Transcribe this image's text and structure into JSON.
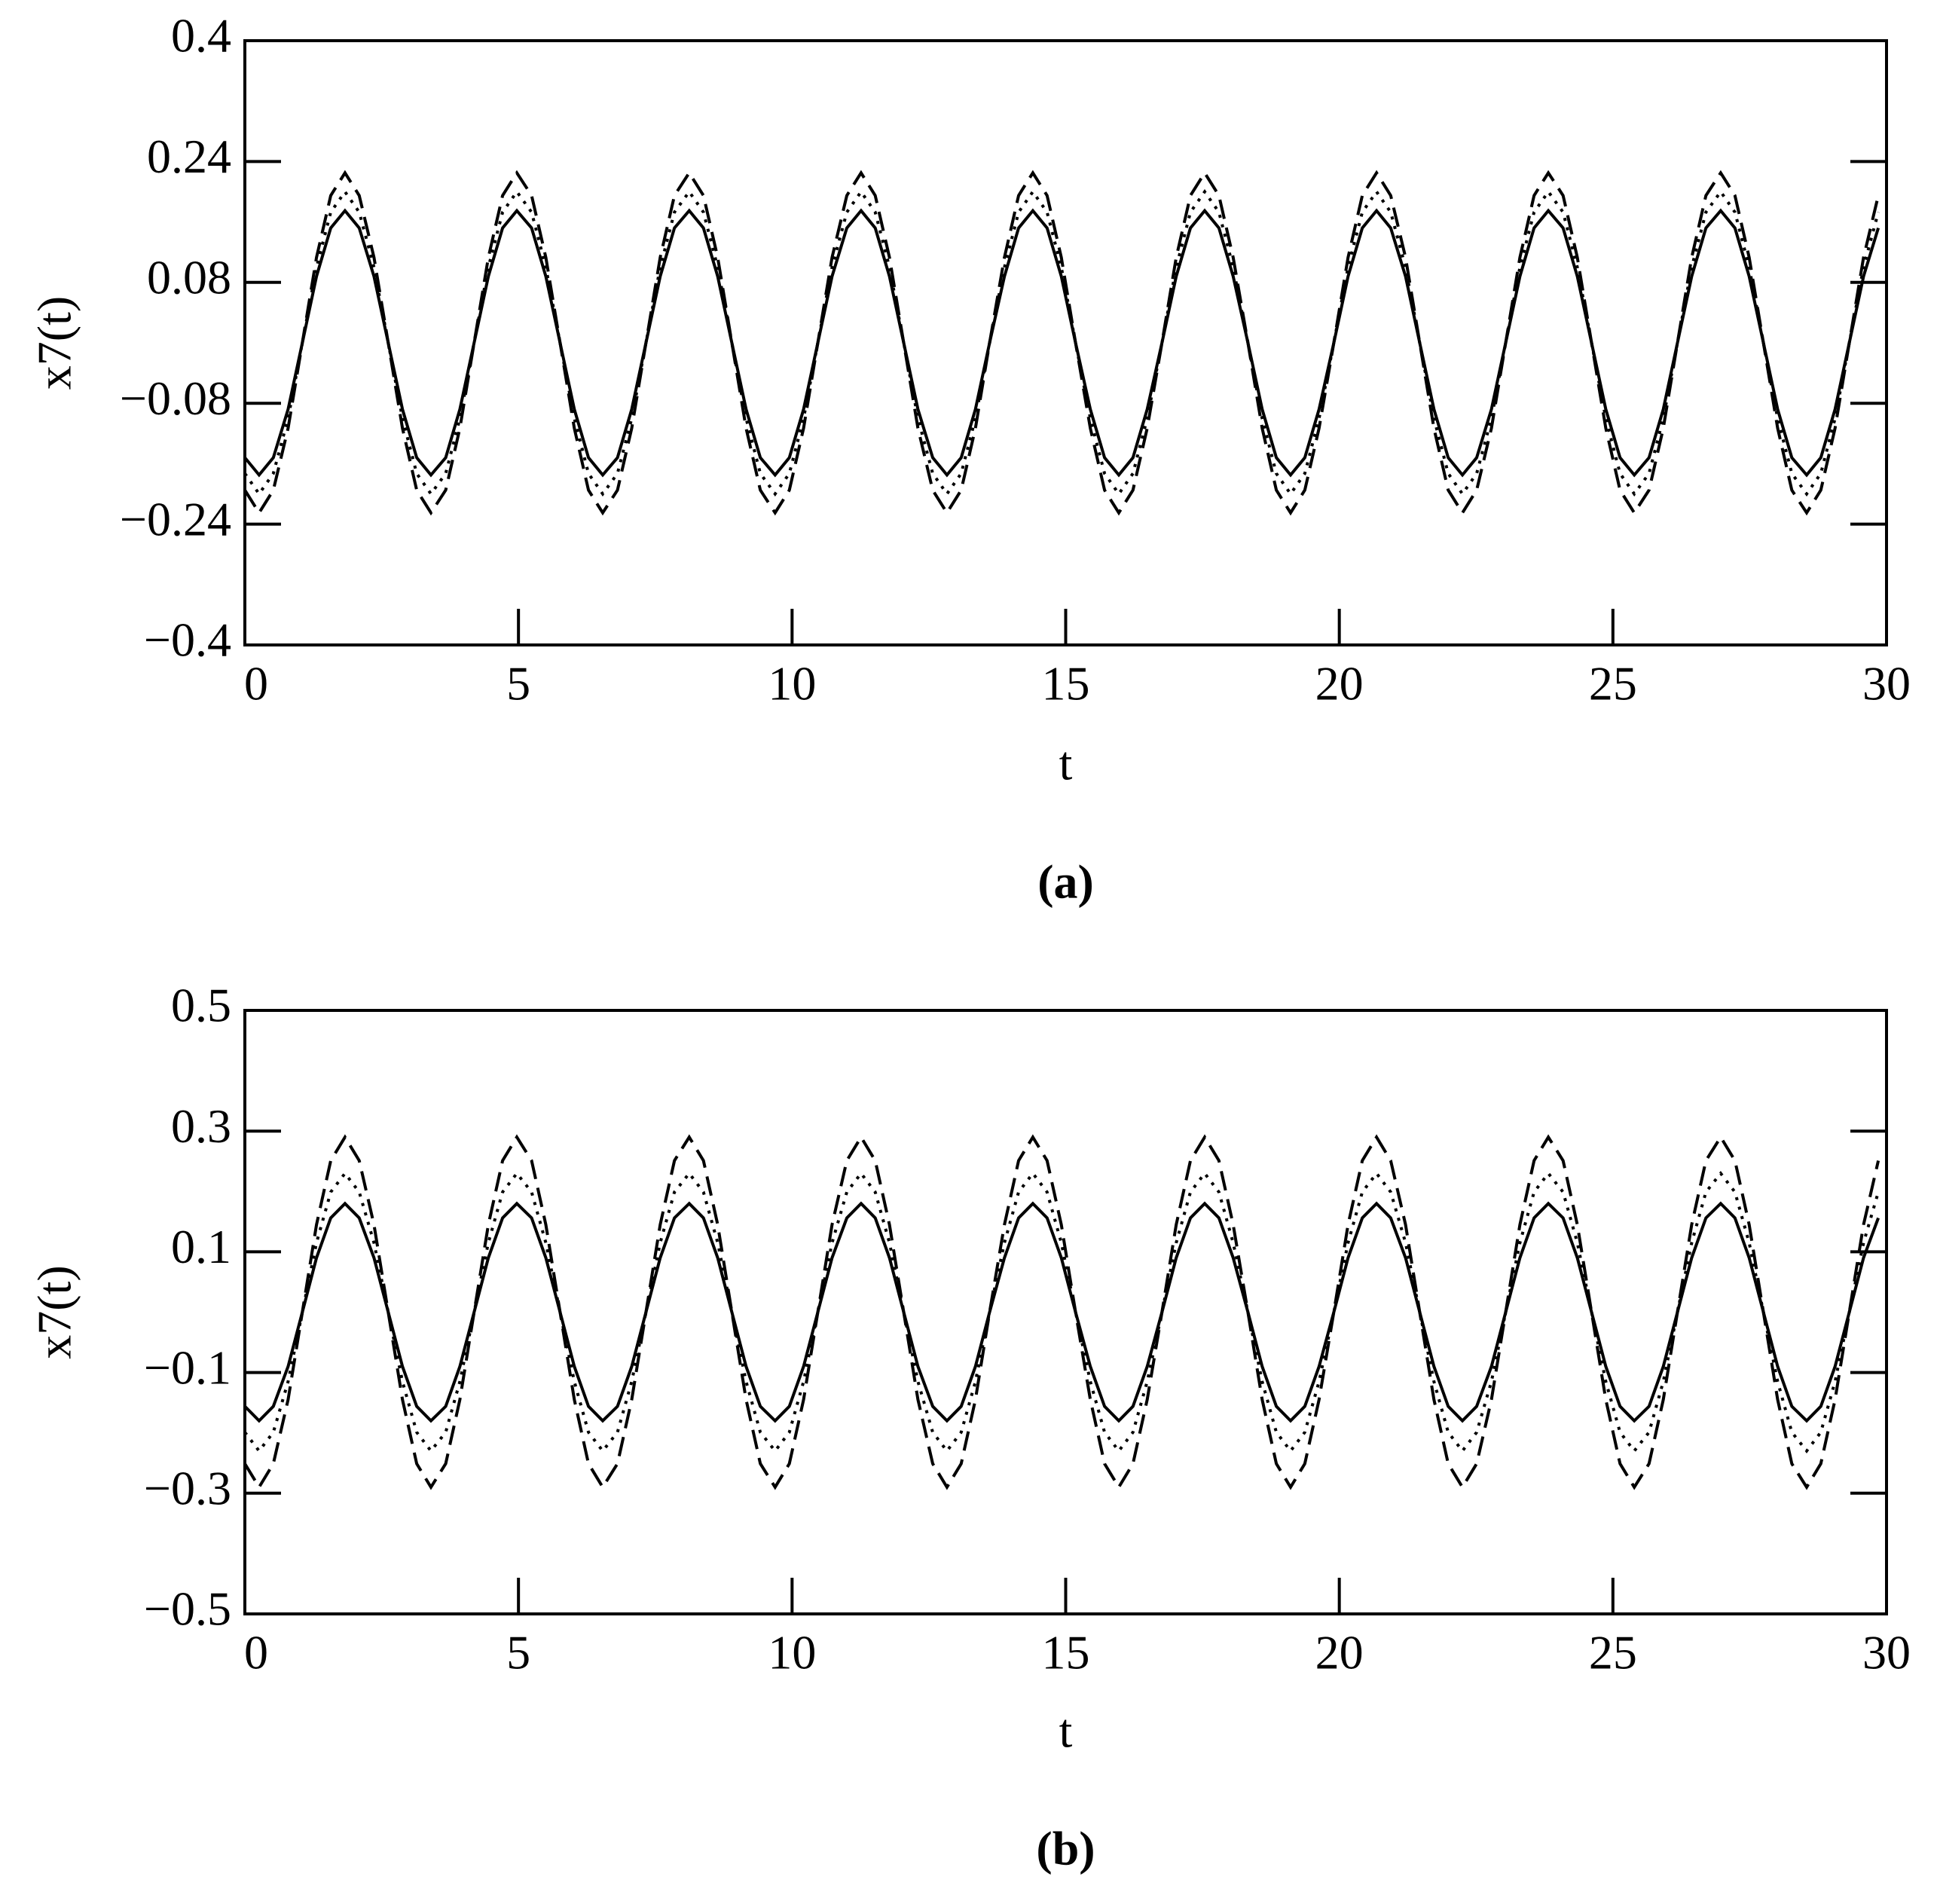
{
  "chart_data": [
    {
      "type": "line",
      "xlabel": "t",
      "ylabel": "x7(t)",
      "caption": "(a)",
      "xlim": [
        0,
        30
      ],
      "xticks": [
        0,
        5,
        10,
        15,
        20,
        25,
        30
      ],
      "ylim": [
        -0.4,
        0.4
      ],
      "yticks": [
        0.4,
        0.24,
        0.08,
        {
          "value": -0.08,
          "label": "−0.08"
        },
        {
          "value": -0.24,
          "label": "−0.24"
        },
        {
          "value": -0.4,
          "label": "−0.4"
        }
      ],
      "x": [
        0,
        0.26,
        0.52,
        0.79,
        1.05,
        1.31,
        1.57,
        1.83,
        2.09,
        2.36,
        2.62,
        2.88,
        3.14,
        3.4,
        3.67,
        3.93,
        4.19,
        4.45,
        4.71,
        4.97,
        5.24,
        5.5,
        5.76,
        6.02,
        6.28,
        6.54,
        6.81,
        7.07,
        7.33,
        7.59,
        7.85,
        8.12,
        8.38,
        8.64,
        8.9,
        9.16,
        9.42,
        9.69,
        9.95,
        10.21,
        10.47,
        10.73,
        11.0,
        11.26,
        11.52,
        11.78,
        12.04,
        12.3,
        12.57,
        12.83,
        13.09,
        13.35,
        13.61,
        13.88,
        14.14,
        14.4,
        14.66,
        14.92,
        15.18,
        15.45,
        15.71,
        15.97,
        16.23,
        16.49,
        16.76,
        17.02,
        17.28,
        17.54,
        17.8,
        18.06,
        18.33,
        18.59,
        18.85,
        19.11,
        19.37,
        19.63,
        19.9,
        20.16,
        20.42,
        20.68,
        20.94,
        21.21,
        21.47,
        21.73,
        21.99,
        22.25,
        22.51,
        22.78,
        23.04,
        23.3,
        23.56,
        23.82,
        24.09,
        24.35,
        24.61,
        24.87,
        25.13,
        25.39,
        25.66,
        25.92,
        26.18,
        26.44,
        26.7,
        26.97,
        27.23,
        27.49,
        27.75,
        28.01,
        28.27,
        28.54,
        28.8,
        29.06,
        29.32,
        29.58,
        29.85
      ],
      "series": [
        {
          "color": "#000000",
          "line_style": "solid",
          "values": [
            -0.152,
            -0.175,
            -0.152,
            -0.088,
            0,
            0.088,
            0.152,
            0.175,
            0.152,
            0.088,
            0,
            -0.088,
            -0.152,
            -0.175,
            -0.152,
            -0.088,
            0,
            0.088,
            0.152,
            0.175,
            0.152,
            0.088,
            0,
            -0.088,
            -0.152,
            -0.175,
            -0.152,
            -0.088,
            0,
            0.088,
            0.152,
            0.175,
            0.152,
            0.088,
            0,
            -0.088,
            -0.152,
            -0.175,
            -0.152,
            -0.088,
            0,
            0.088,
            0.152,
            0.175,
            0.152,
            0.088,
            0,
            -0.088,
            -0.152,
            -0.175,
            -0.152,
            -0.088,
            0,
            0.088,
            0.152,
            0.175,
            0.152,
            0.088,
            0,
            -0.088,
            -0.152,
            -0.175,
            -0.152,
            -0.088,
            0,
            0.088,
            0.152,
            0.175,
            0.152,
            0.088,
            0,
            -0.088,
            -0.152,
            -0.175,
            -0.152,
            -0.088,
            0,
            0.088,
            0.152,
            0.175,
            0.152,
            0.088,
            0,
            -0.088,
            -0.152,
            -0.175,
            -0.152,
            -0.088,
            0,
            0.088,
            0.152,
            0.175,
            0.152,
            0.088,
            0,
            -0.088,
            -0.152,
            -0.175,
            -0.152,
            -0.088,
            0,
            0.088,
            0.152,
            0.175,
            0.152,
            0.088,
            0,
            -0.088,
            -0.152,
            -0.175,
            -0.152,
            -0.088,
            0,
            0.088,
            0.152
          ]
        },
        {
          "color": "#000000",
          "line_style": "dotted",
          "values": [
            -0.173,
            -0.2,
            -0.173,
            -0.1,
            0,
            0.1,
            0.173,
            0.2,
            0.173,
            0.1,
            0,
            -0.1,
            -0.173,
            -0.2,
            -0.173,
            -0.1,
            0,
            0.1,
            0.173,
            0.2,
            0.173,
            0.1,
            0,
            -0.1,
            -0.173,
            -0.2,
            -0.173,
            -0.1,
            0,
            0.1,
            0.173,
            0.2,
            0.173,
            0.1,
            0,
            -0.1,
            -0.173,
            -0.2,
            -0.173,
            -0.1,
            0,
            0.1,
            0.173,
            0.2,
            0.173,
            0.1,
            0,
            -0.1,
            -0.173,
            -0.2,
            -0.173,
            -0.1,
            0,
            0.1,
            0.173,
            0.2,
            0.173,
            0.1,
            0,
            -0.1,
            -0.173,
            -0.2,
            -0.173,
            -0.1,
            0,
            0.1,
            0.173,
            0.2,
            0.173,
            0.1,
            0,
            -0.1,
            -0.173,
            -0.2,
            -0.173,
            -0.1,
            0,
            0.1,
            0.173,
            0.2,
            0.173,
            0.1,
            0,
            -0.1,
            -0.173,
            -0.2,
            -0.173,
            -0.1,
            0,
            0.1,
            0.173,
            0.2,
            0.173,
            0.1,
            0,
            -0.1,
            -0.173,
            -0.2,
            -0.173,
            -0.1,
            0,
            0.1,
            0.173,
            0.2,
            0.173,
            0.1,
            0,
            -0.1,
            -0.173,
            -0.2,
            -0.173,
            -0.1,
            0,
            0.1,
            0.173
          ]
        },
        {
          "color": "#000000",
          "line_style": "dashed",
          "values": [
            -0.195,
            -0.225,
            -0.195,
            -0.113,
            0,
            0.113,
            0.195,
            0.225,
            0.195,
            0.113,
            0,
            -0.113,
            -0.195,
            -0.225,
            -0.195,
            -0.113,
            0,
            0.113,
            0.195,
            0.225,
            0.195,
            0.113,
            0,
            -0.113,
            -0.195,
            -0.225,
            -0.195,
            -0.113,
            0,
            0.113,
            0.195,
            0.225,
            0.195,
            0.113,
            0,
            -0.113,
            -0.195,
            -0.225,
            -0.195,
            -0.113,
            0,
            0.113,
            0.195,
            0.225,
            0.195,
            0.113,
            0,
            -0.113,
            -0.195,
            -0.225,
            -0.195,
            -0.113,
            0,
            0.113,
            0.195,
            0.225,
            0.195,
            0.113,
            0,
            -0.113,
            -0.195,
            -0.225,
            -0.195,
            -0.113,
            0,
            0.113,
            0.195,
            0.225,
            0.195,
            0.113,
            0,
            -0.113,
            -0.195,
            -0.225,
            -0.195,
            -0.113,
            0,
            0.113,
            0.195,
            0.225,
            0.195,
            0.113,
            0,
            -0.113,
            -0.195,
            -0.225,
            -0.195,
            -0.113,
            0,
            0.113,
            0.195,
            0.225,
            0.195,
            0.113,
            0,
            -0.113,
            -0.195,
            -0.225,
            -0.195,
            -0.113,
            0,
            0.113,
            0.195,
            0.225,
            0.195,
            0.113,
            0,
            -0.113,
            -0.195,
            -0.225,
            -0.195,
            -0.113,
            0,
            0.113,
            0.195
          ]
        }
      ]
    },
    {
      "type": "line",
      "xlabel": "t",
      "ylabel": "x7(t)",
      "caption": "(b)",
      "xlim": [
        0,
        30
      ],
      "xticks": [
        0,
        5,
        10,
        15,
        20,
        25,
        30
      ],
      "ylim": [
        -0.5,
        0.5
      ],
      "yticks": [
        0.5,
        0.3,
        0.1,
        {
          "value": -0.1,
          "label": "−0.1"
        },
        {
          "value": -0.3,
          "label": "−0.3"
        },
        {
          "value": -0.5,
          "label": "−0.5"
        }
      ],
      "x": [
        0,
        0.26,
        0.52,
        0.79,
        1.05,
        1.31,
        1.57,
        1.83,
        2.09,
        2.36,
        2.62,
        2.88,
        3.14,
        3.4,
        3.67,
        3.93,
        4.19,
        4.45,
        4.71,
        4.97,
        5.24,
        5.5,
        5.76,
        6.02,
        6.28,
        6.54,
        6.81,
        7.07,
        7.33,
        7.59,
        7.85,
        8.12,
        8.38,
        8.64,
        8.9,
        9.16,
        9.42,
        9.69,
        9.95,
        10.21,
        10.47,
        10.73,
        11.0,
        11.26,
        11.52,
        11.78,
        12.04,
        12.3,
        12.57,
        12.83,
        13.09,
        13.35,
        13.61,
        13.88,
        14.14,
        14.4,
        14.66,
        14.92,
        15.18,
        15.45,
        15.71,
        15.97,
        16.23,
        16.49,
        16.76,
        17.02,
        17.28,
        17.54,
        17.8,
        18.06,
        18.33,
        18.59,
        18.85,
        19.11,
        19.37,
        19.63,
        19.9,
        20.16,
        20.42,
        20.68,
        20.94,
        21.21,
        21.47,
        21.73,
        21.99,
        22.25,
        22.51,
        22.78,
        23.04,
        23.3,
        23.56,
        23.82,
        24.09,
        24.35,
        24.61,
        24.87,
        25.13,
        25.39,
        25.66,
        25.92,
        26.18,
        26.44,
        26.7,
        26.97,
        27.23,
        27.49,
        27.75,
        28.01,
        28.27,
        28.54,
        28.8,
        29.06,
        29.32,
        29.58,
        29.85
      ],
      "series": [
        {
          "color": "#000000",
          "line_style": "solid",
          "values": [
            -0.156,
            -0.18,
            -0.156,
            -0.09,
            0,
            0.09,
            0.156,
            0.18,
            0.156,
            0.09,
            0,
            -0.09,
            -0.156,
            -0.18,
            -0.156,
            -0.09,
            0,
            0.09,
            0.156,
            0.18,
            0.156,
            0.09,
            0,
            -0.09,
            -0.156,
            -0.18,
            -0.156,
            -0.09,
            0,
            0.09,
            0.156,
            0.18,
            0.156,
            0.09,
            0,
            -0.09,
            -0.156,
            -0.18,
            -0.156,
            -0.09,
            0,
            0.09,
            0.156,
            0.18,
            0.156,
            0.09,
            0,
            -0.09,
            -0.156,
            -0.18,
            -0.156,
            -0.09,
            0,
            0.09,
            0.156,
            0.18,
            0.156,
            0.09,
            0,
            -0.09,
            -0.156,
            -0.18,
            -0.156,
            -0.09,
            0,
            0.09,
            0.156,
            0.18,
            0.156,
            0.09,
            0,
            -0.09,
            -0.156,
            -0.18,
            -0.156,
            -0.09,
            0,
            0.09,
            0.156,
            0.18,
            0.156,
            0.09,
            0,
            -0.09,
            -0.156,
            -0.18,
            -0.156,
            -0.09,
            0,
            0.09,
            0.156,
            0.18,
            0.156,
            0.09,
            0,
            -0.09,
            -0.156,
            -0.18,
            -0.156,
            -0.09,
            0,
            0.09,
            0.156,
            0.18,
            0.156,
            0.09,
            0,
            -0.09,
            -0.156,
            -0.18,
            -0.156,
            -0.09,
            0,
            0.09,
            0.156
          ]
        },
        {
          "color": "#000000",
          "line_style": "dotted",
          "values": [
            -0.199,
            -0.23,
            -0.199,
            -0.115,
            0,
            0.115,
            0.199,
            0.23,
            0.199,
            0.115,
            0,
            -0.115,
            -0.199,
            -0.23,
            -0.199,
            -0.115,
            0,
            0.115,
            0.199,
            0.23,
            0.199,
            0.115,
            0,
            -0.115,
            -0.199,
            -0.23,
            -0.199,
            -0.115,
            0,
            0.115,
            0.199,
            0.23,
            0.199,
            0.115,
            0,
            -0.115,
            -0.199,
            -0.23,
            -0.199,
            -0.115,
            0,
            0.115,
            0.199,
            0.23,
            0.199,
            0.115,
            0,
            -0.115,
            -0.199,
            -0.23,
            -0.199,
            -0.115,
            0,
            0.115,
            0.199,
            0.23,
            0.199,
            0.115,
            0,
            -0.115,
            -0.199,
            -0.23,
            -0.199,
            -0.115,
            0,
            0.115,
            0.199,
            0.23,
            0.199,
            0.115,
            0,
            -0.115,
            -0.199,
            -0.23,
            -0.199,
            -0.115,
            0,
            0.115,
            0.199,
            0.23,
            0.199,
            0.115,
            0,
            -0.115,
            -0.199,
            -0.23,
            -0.199,
            -0.115,
            0,
            0.115,
            0.199,
            0.23,
            0.199,
            0.115,
            0,
            -0.115,
            -0.199,
            -0.23,
            -0.199,
            -0.115,
            0,
            0.115,
            0.199,
            0.23,
            0.199,
            0.115,
            0,
            -0.115,
            -0.199,
            -0.23,
            -0.199,
            -0.115,
            0,
            0.115,
            0.199
          ]
        },
        {
          "color": "#000000",
          "line_style": "dashed",
          "values": [
            -0.251,
            -0.29,
            -0.251,
            -0.145,
            0,
            0.145,
            0.251,
            0.29,
            0.251,
            0.145,
            0,
            -0.145,
            -0.251,
            -0.29,
            -0.251,
            -0.145,
            0,
            0.145,
            0.251,
            0.29,
            0.251,
            0.145,
            0,
            -0.145,
            -0.251,
            -0.29,
            -0.251,
            -0.145,
            0,
            0.145,
            0.251,
            0.29,
            0.251,
            0.145,
            0,
            -0.145,
            -0.251,
            -0.29,
            -0.251,
            -0.145,
            0,
            0.145,
            0.251,
            0.29,
            0.251,
            0.145,
            0,
            -0.145,
            -0.251,
            -0.29,
            -0.251,
            -0.145,
            0,
            0.145,
            0.251,
            0.29,
            0.251,
            0.145,
            0,
            -0.145,
            -0.251,
            -0.29,
            -0.251,
            -0.145,
            0,
            0.145,
            0.251,
            0.29,
            0.251,
            0.145,
            0,
            -0.145,
            -0.251,
            -0.29,
            -0.251,
            -0.145,
            0,
            0.145,
            0.251,
            0.29,
            0.251,
            0.145,
            0,
            -0.145,
            -0.251,
            -0.29,
            -0.251,
            -0.145,
            0,
            0.145,
            0.251,
            0.29,
            0.251,
            0.145,
            0,
            -0.145,
            -0.251,
            -0.29,
            -0.251,
            -0.145,
            0,
            0.145,
            0.251,
            0.29,
            0.251,
            0.145,
            0,
            -0.145,
            -0.251,
            -0.29,
            -0.251,
            -0.145,
            0,
            0.145,
            0.251
          ]
        }
      ]
    }
  ]
}
